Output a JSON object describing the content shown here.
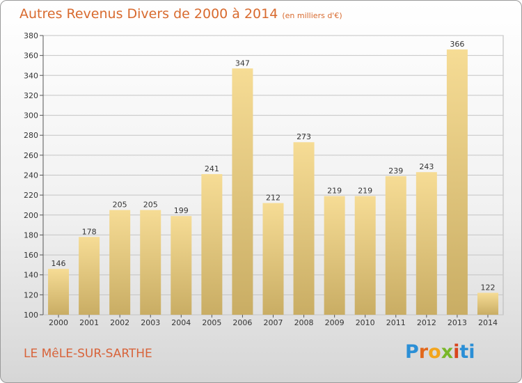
{
  "title": "Autres Revenus Divers de 2000 à 2014",
  "unit": "(en milliers d'€)",
  "commune": "LE MêLE-SUR-SARTHE",
  "logo": {
    "letters": [
      "P",
      "r",
      "o",
      "x",
      "i",
      "ti"
    ]
  },
  "chart_data": {
    "type": "bar",
    "categories": [
      "2000",
      "2001",
      "2002",
      "2003",
      "2004",
      "2005",
      "2006",
      "2007",
      "2008",
      "2009",
      "2010",
      "2011",
      "2012",
      "2013",
      "2014"
    ],
    "values": [
      146,
      178,
      205,
      205,
      199,
      241,
      347,
      212,
      273,
      219,
      219,
      239,
      243,
      366,
      122
    ],
    "ylim": [
      100,
      380
    ],
    "yticks": [
      100,
      120,
      140,
      160,
      180,
      200,
      220,
      240,
      260,
      280,
      300,
      320,
      340,
      360,
      380
    ],
    "grid": true,
    "bar_color_top": "#f6dc95",
    "bar_color_bottom": "#c9ad64"
  }
}
